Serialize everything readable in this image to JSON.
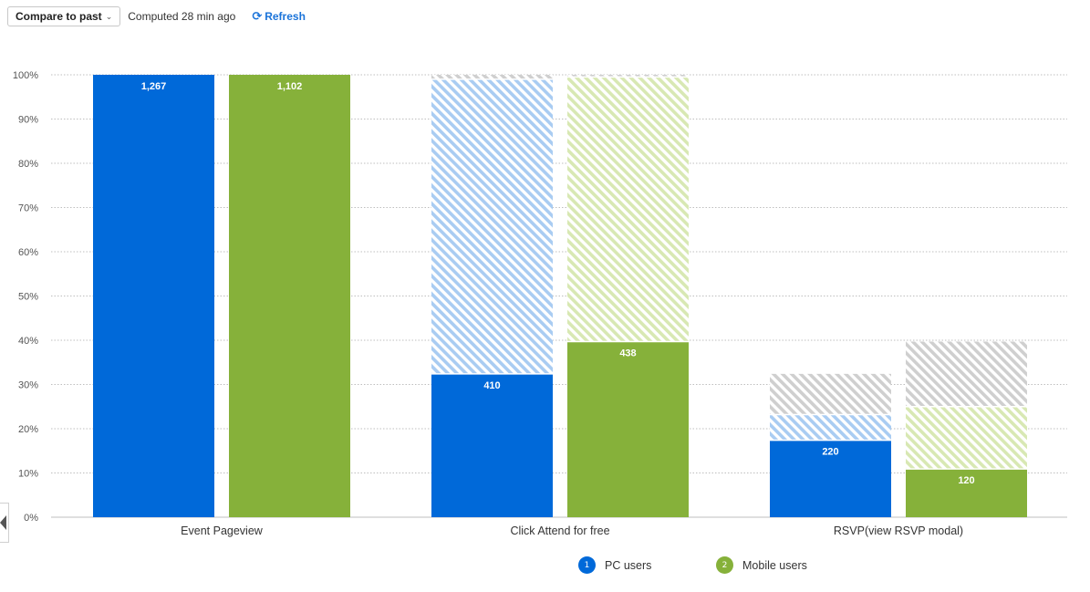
{
  "toolbar": {
    "compare_label": "Compare to past",
    "compare_icon": "chevron-down-icon",
    "computed_text": "Computed 28 min ago",
    "refresh_label": "Refresh",
    "refresh_icon": "refresh-icon"
  },
  "colors": {
    "pc": "#0069d9",
    "mobile": "#86b13a",
    "pc_light": "#a9ccf2",
    "mobile_light": "#d8e8b3",
    "dropoff": "#cfcfcf",
    "grid": "#bfbfbf",
    "accent": "#1a73d9"
  },
  "chart_data": {
    "type": "bar",
    "stacked": true,
    "categories": [
      "Event Pageview",
      "Click Attend for free",
      "RSVP(view RSVP modal)"
    ],
    "ylim": [
      0,
      100
    ],
    "y_ticks": [
      0,
      10,
      20,
      30,
      40,
      50,
      60,
      70,
      80,
      90,
      100
    ],
    "y_tick_labels": [
      "0%",
      "10%",
      "20%",
      "30%",
      "40%",
      "50%",
      "60%",
      "70%",
      "80%",
      "90%",
      "100%"
    ],
    "series": [
      {
        "name": "PC users",
        "index": "1",
        "converted_pct": [
          100,
          32.4,
          17.4
        ],
        "converted_labels": [
          "1,267",
          "410",
          "220"
        ],
        "past_comparison_pct": [
          100,
          99,
          23.2
        ],
        "previous_step_pct": [
          100,
          100,
          32.4
        ]
      },
      {
        "name": "Mobile users",
        "index": "2",
        "converted_pct": [
          100,
          39.7,
          10.9
        ],
        "converted_labels": [
          "1,102",
          "438",
          "120"
        ],
        "past_comparison_pct": [
          100,
          99.5,
          25
        ],
        "previous_step_pct": [
          100,
          100,
          39.7
        ]
      }
    ],
    "legend_position": "bottom-center",
    "grid": true
  },
  "legend": {
    "items": [
      {
        "index": "1",
        "label": "PC users"
      },
      {
        "index": "2",
        "label": "Mobile users"
      }
    ]
  }
}
